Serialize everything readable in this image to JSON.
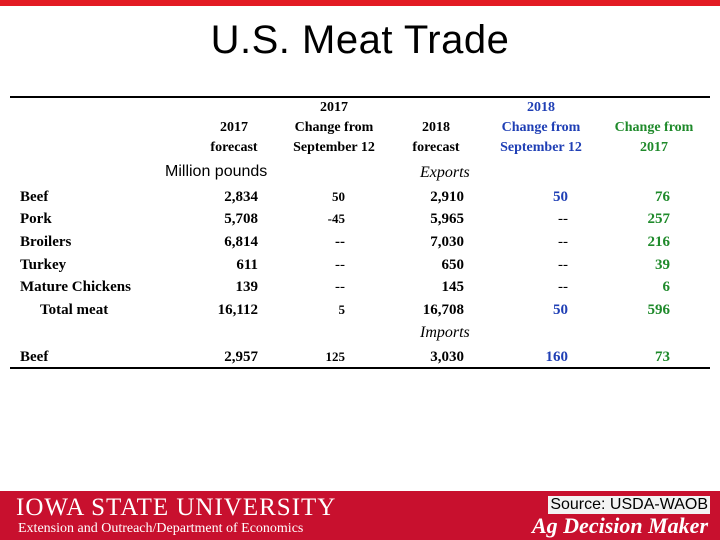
{
  "title": "U.S. Meat Trade",
  "unit_label": "Million pounds",
  "headers": {
    "c1": [
      "2017",
      "forecast"
    ],
    "c2_group": "2017",
    "c2": [
      "Change from",
      "September 12"
    ],
    "c3": [
      "2018",
      "forecast"
    ],
    "c4_group": "2018",
    "c4": [
      "Change from",
      "September 12"
    ],
    "c5": [
      "Change from",
      "2017"
    ]
  },
  "sections": {
    "exports": "Exports",
    "imports": "Imports"
  },
  "export_rows": [
    {
      "label": "Beef",
      "f2017": "2,834",
      "chg2017": "50",
      "f2018": "2,910",
      "chg_sep": "50",
      "chg_2017": "76"
    },
    {
      "label": "Pork",
      "f2017": "5,708",
      "chg2017": "-45",
      "f2018": "5,965",
      "chg_sep": "--",
      "chg_2017": "257"
    },
    {
      "label": "Broilers",
      "f2017": "6,814",
      "chg2017": "--",
      "f2018": "7,030",
      "chg_sep": "--",
      "chg_2017": "216"
    },
    {
      "label": "Turkey",
      "f2017": "611",
      "chg2017": "--",
      "f2018": "650",
      "chg_sep": "--",
      "chg_2017": "39"
    },
    {
      "label": "Mature Chickens",
      "f2017": "139",
      "chg2017": "--",
      "f2018": "145",
      "chg_sep": "--",
      "chg_2017": "6"
    },
    {
      "label": "Total meat",
      "f2017": "16,112",
      "chg2017": "5",
      "f2018": "16,708",
      "chg_sep": "50",
      "chg_2017": "596"
    }
  ],
  "import_rows": [
    {
      "label": "Beef",
      "f2017": "2,957",
      "chg2017": "125",
      "f2018": "3,030",
      "chg_sep": "160",
      "chg_2017": "73"
    }
  ],
  "colors": {
    "brand_red": "#c8102e",
    "blue": "#1f3fb5",
    "green": "#1f8a2b"
  },
  "footer": {
    "university": "IOWA STATE UNIVERSITY",
    "extension": "Extension and Outreach/Department of Economics",
    "source": "Source: USDA-WAOB",
    "brand": "Ag Decision Maker"
  }
}
